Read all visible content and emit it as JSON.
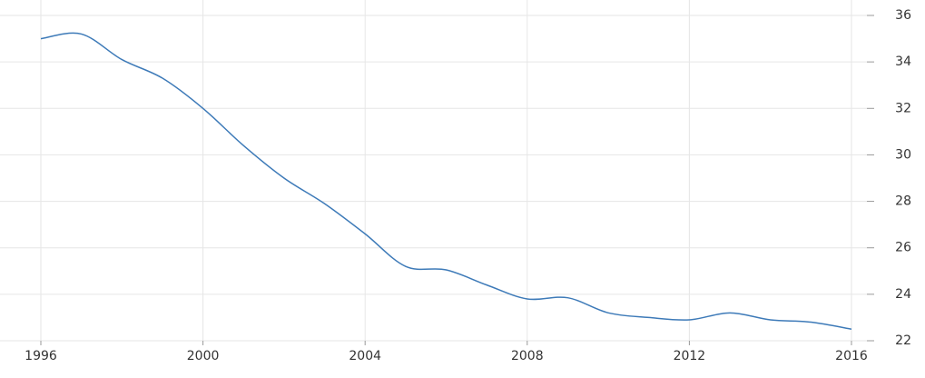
{
  "chart_data": {
    "type": "line",
    "x": [
      1996,
      1997,
      1998,
      1999,
      2000,
      2001,
      2002,
      2003,
      2004,
      2005,
      2006,
      2007,
      2008,
      2009,
      2010,
      2011,
      2012,
      2013,
      2014,
      2015,
      2016
    ],
    "series": [
      {
        "color": "#3d7ab8",
        "values": [
          35.0,
          35.2,
          34.1,
          33.3,
          32.0,
          30.4,
          29.0,
          27.9,
          26.6,
          25.2,
          25.05,
          24.4,
          23.8,
          23.85,
          23.2,
          23.0,
          22.9,
          23.2,
          22.9,
          22.8,
          22.5
        ]
      }
    ],
    "xlim": [
      1996,
      2016
    ],
    "xticks": [
      1996,
      2000,
      2004,
      2008,
      2012,
      2016
    ],
    "ylim": [
      22,
      36
    ],
    "yticks": [
      22,
      24,
      26,
      28,
      30,
      32,
      34,
      36
    ],
    "grid": true
  }
}
